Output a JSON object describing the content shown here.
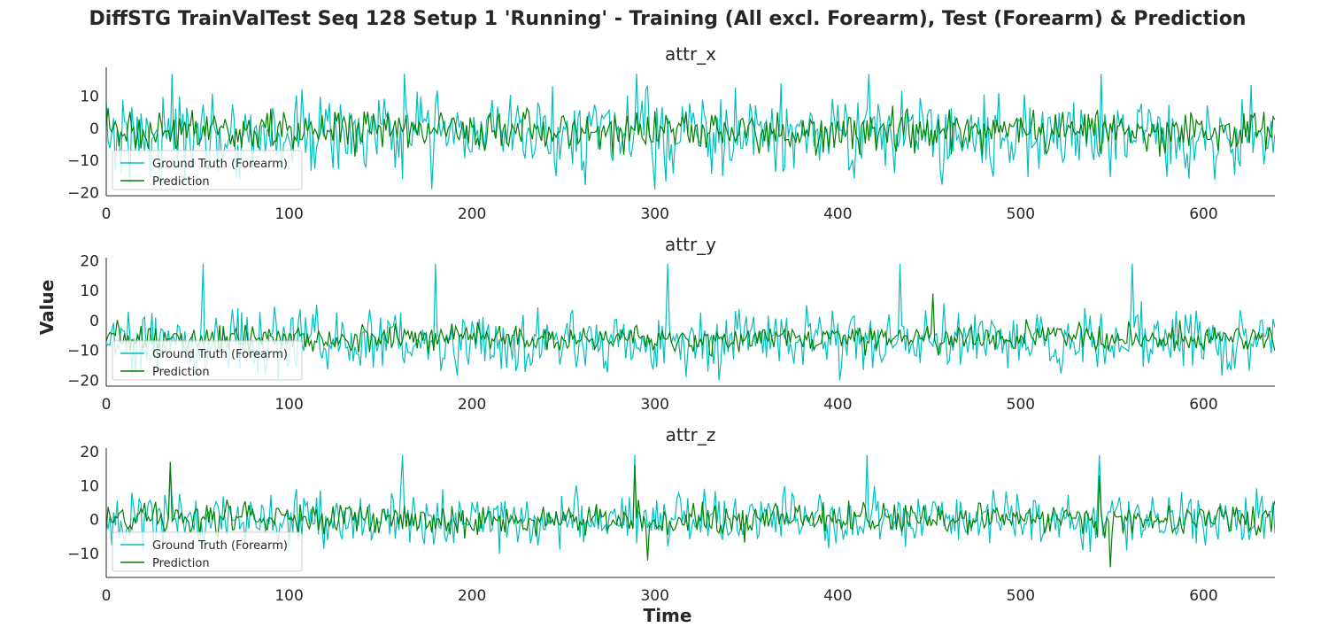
{
  "figure": {
    "title": "DiffSTG TrainValTest Seq 128 Setup 1 'Running' - Training (All excl. Forearm), Test (Forearm) & Prediction",
    "xlabel": "Time",
    "ylabel": "Value"
  },
  "colors": {
    "ground_truth": "#00bfbf",
    "prediction": "#008000",
    "axis": "#262626"
  },
  "chart_data": [
    {
      "type": "line",
      "title": "attr_x",
      "xlim": [
        0,
        639
      ],
      "ylim": [
        -21,
        19
      ],
      "x_ticks": [
        0,
        100,
        200,
        300,
        400,
        500,
        600
      ],
      "y_ticks": [
        -20,
        -10,
        0,
        10
      ],
      "legend": {
        "position": "lower-left",
        "entries": [
          "Ground Truth (Forearm)",
          "Prediction"
        ]
      },
      "grid": false,
      "series": [
        {
          "name": "Ground Truth (Forearm)",
          "color": "#00bfbf",
          "mean": -2,
          "amplitude": 8,
          "min": -19,
          "max": 17,
          "n_points": 640,
          "spikes": [
            [
              36,
              17
            ],
            [
              163,
              17
            ],
            [
              290,
              17
            ],
            [
              417,
              17
            ],
            [
              544,
              17
            ],
            [
              178,
              -19
            ],
            [
              300,
              -19
            ]
          ]
        },
        {
          "name": "Prediction",
          "color": "#008000",
          "mean": -1,
          "amplitude": 4,
          "min": -14,
          "max": 9,
          "n_points": 640,
          "spikes": []
        }
      ]
    },
    {
      "type": "line",
      "title": "attr_y",
      "xlim": [
        0,
        639
      ],
      "ylim": [
        -22,
        21
      ],
      "x_ticks": [
        0,
        100,
        200,
        300,
        400,
        500,
        600
      ],
      "y_ticks": [
        -20,
        -10,
        0,
        10,
        20
      ],
      "legend": {
        "position": "lower-left",
        "entries": [
          "Ground Truth (Forearm)",
          "Prediction"
        ]
      },
      "grid": false,
      "series": [
        {
          "name": "Ground Truth (Forearm)",
          "color": "#00bfbf",
          "mean": -7,
          "amplitude": 7,
          "min": -20,
          "max": 19,
          "n_points": 640,
          "spikes": [
            [
              53,
              19
            ],
            [
              180,
              19
            ],
            [
              307,
              19
            ],
            [
              434,
              19
            ],
            [
              561,
              19
            ]
          ]
        },
        {
          "name": "Prediction",
          "color": "#008000",
          "mean": -6,
          "amplitude": 3,
          "min": -18,
          "max": 9,
          "n_points": 640,
          "spikes": [
            [
              452,
              9
            ]
          ]
        }
      ]
    },
    {
      "type": "line",
      "title": "attr_z",
      "xlim": [
        0,
        639
      ],
      "ylim": [
        -17,
        21
      ],
      "x_ticks": [
        0,
        100,
        200,
        300,
        400,
        500,
        600
      ],
      "y_ticks": [
        -10,
        0,
        10,
        20
      ],
      "legend": {
        "position": "lower-left",
        "entries": [
          "Ground Truth (Forearm)",
          "Prediction"
        ]
      },
      "grid": false,
      "series": [
        {
          "name": "Ground Truth (Forearm)",
          "color": "#00bfbf",
          "mean": 0,
          "amplitude": 5,
          "min": -15,
          "max": 19,
          "n_points": 640,
          "spikes": [
            [
              35,
              16
            ],
            [
              162,
              19
            ],
            [
              289,
              19
            ],
            [
              416,
              19
            ],
            [
              543,
              19
            ]
          ]
        },
        {
          "name": "Prediction",
          "color": "#008000",
          "mean": 0,
          "amplitude": 3,
          "min": -14,
          "max": 17,
          "n_points": 640,
          "spikes": [
            [
              35,
              17
            ],
            [
              289,
              16
            ],
            [
              543,
              13
            ],
            [
              296,
              -12
            ],
            [
              549,
              -14
            ]
          ]
        }
      ]
    }
  ]
}
